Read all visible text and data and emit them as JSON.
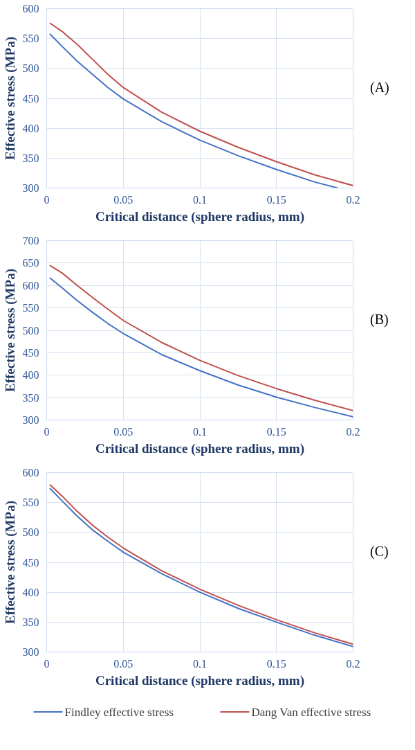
{
  "chart_data": [
    {
      "type": "line",
      "xlabel": "Critical distance (sphere radius, mm)",
      "ylabel": "Effective stress (MPa)",
      "annotations": [
        "(A)"
      ],
      "xlim": [
        0,
        0.2
      ],
      "xticks": [
        0,
        0.05,
        0.1,
        0.15,
        0.2
      ],
      "ylim": [
        300,
        600
      ],
      "yticks": [
        300,
        350,
        400,
        450,
        500,
        550,
        600
      ],
      "grid": true,
      "series": [
        {
          "color": "#4472c4",
          "x": [
            0.002,
            0.01,
            0.02,
            0.03,
            0.04,
            0.05,
            0.075,
            0.1,
            0.125,
            0.15,
            0.175,
            0.19
          ],
          "values": [
            558,
            537,
            512,
            490,
            468,
            449,
            411,
            380,
            354,
            331,
            310,
            300
          ]
        },
        {
          "color": "#c0504d",
          "x": [
            0.002,
            0.01,
            0.02,
            0.03,
            0.04,
            0.05,
            0.075,
            0.1,
            0.125,
            0.15,
            0.175,
            0.2
          ],
          "values": [
            576,
            562,
            540,
            515,
            490,
            468,
            427,
            395,
            368,
            344,
            322,
            304
          ]
        }
      ]
    },
    {
      "type": "line",
      "xlabel": "Critical distance (sphere radius, mm)",
      "ylabel": "Effective stress (MPa)",
      "annotations": [
        "(B)"
      ],
      "xlim": [
        0,
        0.2
      ],
      "xticks": [
        0,
        0.05,
        0.1,
        0.15,
        0.2
      ],
      "ylim": [
        300,
        700
      ],
      "yticks": [
        300,
        350,
        400,
        450,
        500,
        550,
        600,
        650,
        700
      ],
      "grid": true,
      "series": [
        {
          "color": "#4472c4",
          "x": [
            0.002,
            0.01,
            0.02,
            0.03,
            0.04,
            0.05,
            0.075,
            0.1,
            0.125,
            0.15,
            0.175,
            0.2
          ],
          "values": [
            617,
            595,
            566,
            540,
            515,
            493,
            446,
            410,
            378,
            351,
            328,
            307
          ]
        },
        {
          "color": "#c0504d",
          "x": [
            0.002,
            0.01,
            0.02,
            0.03,
            0.04,
            0.05,
            0.075,
            0.1,
            0.125,
            0.15,
            0.175,
            0.2
          ],
          "values": [
            645,
            628,
            600,
            573,
            547,
            522,
            473,
            433,
            399,
            370,
            344,
            321
          ]
        }
      ]
    },
    {
      "type": "line",
      "xlabel": "Critical distance (sphere radius, mm)",
      "ylabel": "Effective stress (MPa)",
      "annotations": [
        "(C)"
      ],
      "xlim": [
        0,
        0.2
      ],
      "xticks": [
        0,
        0.05,
        0.1,
        0.15,
        0.2
      ],
      "ylim": [
        300,
        600
      ],
      "yticks": [
        300,
        350,
        400,
        450,
        500,
        550,
        600
      ],
      "grid": true,
      "legend": "bottom",
      "series": [
        {
          "name": "Findley effective stress",
          "color": "#4472c4",
          "x": [
            0.002,
            0.01,
            0.02,
            0.03,
            0.04,
            0.05,
            0.075,
            0.1,
            0.125,
            0.15,
            0.175,
            0.2
          ],
          "values": [
            574,
            553,
            527,
            504,
            485,
            467,
            431,
            400,
            373,
            350,
            328,
            309
          ]
        },
        {
          "name": "Dang Van effective stress",
          "color": "#c0504d",
          "x": [
            0.002,
            0.01,
            0.02,
            0.03,
            0.04,
            0.05,
            0.075,
            0.1,
            0.125,
            0.15,
            0.175,
            0.2
          ],
          "values": [
            580,
            561,
            535,
            512,
            492,
            474,
            436,
            405,
            378,
            354,
            332,
            313
          ]
        }
      ]
    }
  ]
}
